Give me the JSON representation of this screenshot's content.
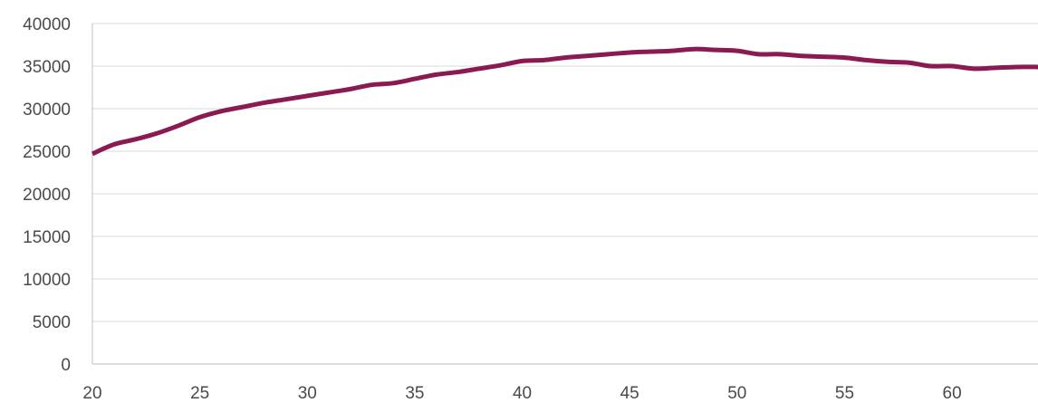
{
  "chart_data": {
    "type": "line",
    "title": "",
    "xlabel": "",
    "ylabel": "",
    "xlim": [
      20,
      64
    ],
    "ylim": [
      0,
      40000
    ],
    "x_ticks": [
      20,
      25,
      30,
      35,
      40,
      45,
      50,
      55,
      60
    ],
    "y_ticks": [
      0,
      5000,
      10000,
      15000,
      20000,
      25000,
      30000,
      35000,
      40000
    ],
    "grid": "horizontal",
    "legend": "none",
    "series": [
      {
        "color": "#8b1a52",
        "x": [
          20,
          21,
          22,
          23,
          24,
          25,
          26,
          27,
          28,
          29,
          30,
          31,
          32,
          33,
          34,
          35,
          36,
          37,
          38,
          39,
          40,
          41,
          42,
          43,
          44,
          45,
          46,
          47,
          48,
          49,
          50,
          51,
          52,
          53,
          54,
          55,
          56,
          57,
          58,
          59,
          60,
          61,
          62,
          63,
          64
        ],
        "y": [
          24700,
          25800,
          26400,
          27100,
          28000,
          29000,
          29700,
          30200,
          30700,
          31100,
          31500,
          31900,
          32300,
          32800,
          33000,
          33500,
          34000,
          34300,
          34700,
          35100,
          35600,
          35700,
          36000,
          36200,
          36400,
          36600,
          36700,
          36800,
          37000,
          36900,
          36800,
          36400,
          36400,
          36200,
          36100,
          36000,
          35700,
          35500,
          35400,
          35000,
          35000,
          34700,
          34800,
          34900,
          34900
        ]
      }
    ]
  }
}
